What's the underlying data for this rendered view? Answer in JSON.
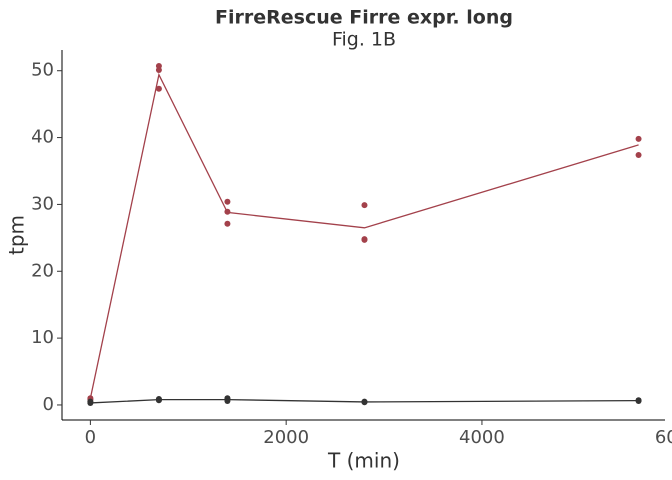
{
  "chart_data": {
    "type": "line",
    "title": "FirreRescue Firre expr. long",
    "subtitle": "Fig. 1B",
    "x_label": "T (min)",
    "y_label": "tpm",
    "xlim": [
      -290,
      5870
    ],
    "ylim": [
      -2.25,
      53.1
    ],
    "xticks": [
      0,
      2000,
      4000,
      6000
    ],
    "yticks": [
      0,
      10,
      20,
      30,
      40,
      50
    ],
    "series": [
      {
        "color": "#a3414b",
        "x": [
          0,
          700,
          1400,
          2800,
          5600
        ],
        "values": [
          1.0,
          49.4,
          28.8,
          26.5,
          38.9
        ],
        "points_x": [
          0,
          0,
          700,
          700,
          700,
          1400,
          1400,
          1400,
          2800,
          2800,
          2800,
          5600,
          5600
        ],
        "points_y": [
          1.0,
          0.8,
          50.7,
          50.1,
          47.3,
          30.4,
          28.9,
          27.1,
          29.9,
          24.8,
          24.7,
          39.8,
          37.4
        ]
      },
      {
        "color": "#333333",
        "x": [
          0,
          700,
          1400,
          2800,
          5600
        ],
        "values": [
          0.3,
          0.8,
          0.8,
          0.45,
          0.65
        ],
        "points_x": [
          0,
          0,
          700,
          700,
          700,
          1400,
          1400,
          1400,
          2800,
          2800,
          5600,
          5600
        ],
        "points_y": [
          0.3,
          0.5,
          0.7,
          0.9,
          0.8,
          0.6,
          0.9,
          1.0,
          0.5,
          0.4,
          0.6,
          0.7
        ]
      }
    ]
  }
}
